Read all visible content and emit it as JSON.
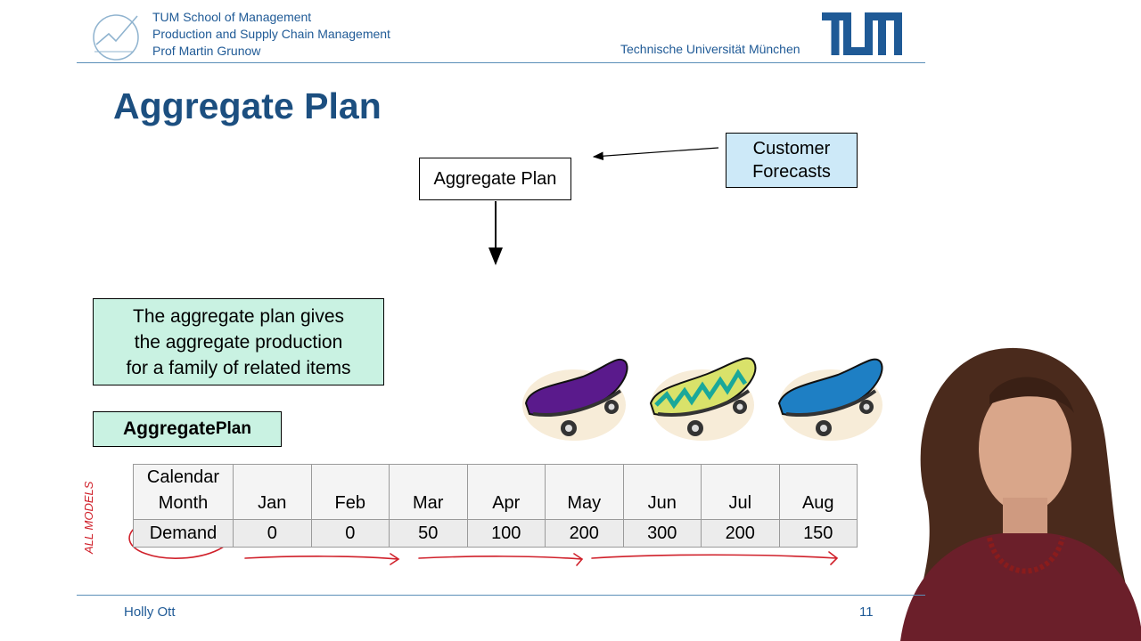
{
  "header": {
    "school_lines": [
      "TUM School of Management",
      "Production and Supply Chain Management",
      "Prof Martin Grunow"
    ],
    "university": "Technische Universität München",
    "brand_color": "#1f5a96"
  },
  "slide": {
    "title": "Aggregate Plan",
    "diagram": {
      "aggregate_box": "Aggregate Plan",
      "customer_box_lines": [
        "Customer",
        "Forecasts"
      ]
    },
    "description_lines": [
      "The aggregate plan gives",
      "the aggregate production",
      "for a family of related items"
    ],
    "label_main": "Aggregate ",
    "label_small": "Plan",
    "table": {
      "header": [
        "Calendar Month",
        "Jan",
        "Feb",
        "Mar",
        "Apr",
        "May",
        "Jun",
        "Jul",
        "Aug"
      ],
      "header_first_lines": [
        "Calendar",
        "Month"
      ],
      "row_label": "Demand",
      "values": [
        "0",
        "0",
        "50",
        "100",
        "200",
        "300",
        "200",
        "150"
      ]
    },
    "annotation_handwritten": "ALL MODELS"
  },
  "footer": {
    "author": "Holly Ott",
    "page_number": "11"
  },
  "colors": {
    "title": "#1c4f80",
    "customer_box": "#cde9f8",
    "green_box": "#c9f2e2",
    "annotation_red": "#d0202a"
  }
}
